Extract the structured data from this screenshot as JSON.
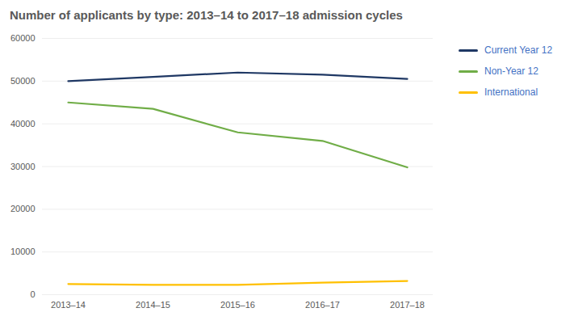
{
  "chart_data": {
    "type": "line",
    "title": "Number of applicants by type: 2013–14 to 2017–18 admission cycles",
    "categories": [
      "2013–14",
      "2014–15",
      "2015–16",
      "2016–17",
      "2017–18"
    ],
    "series": [
      {
        "name": "Current Year 12",
        "color": "#1f3864",
        "values": [
          50000,
          51000,
          52000,
          51500,
          50500
        ]
      },
      {
        "name": "Non-Year 12",
        "color": "#70ad47",
        "values": [
          45000,
          43500,
          38000,
          36000,
          29800
        ]
      },
      {
        "name": "International",
        "color": "#ffc000",
        "values": [
          2500,
          2300,
          2300,
          2800,
          3200
        ]
      }
    ],
    "ylim": [
      0,
      60000
    ],
    "yticks": [
      0,
      10000,
      20000,
      30000,
      40000,
      50000,
      60000
    ],
    "grid": true,
    "legend": "right"
  }
}
